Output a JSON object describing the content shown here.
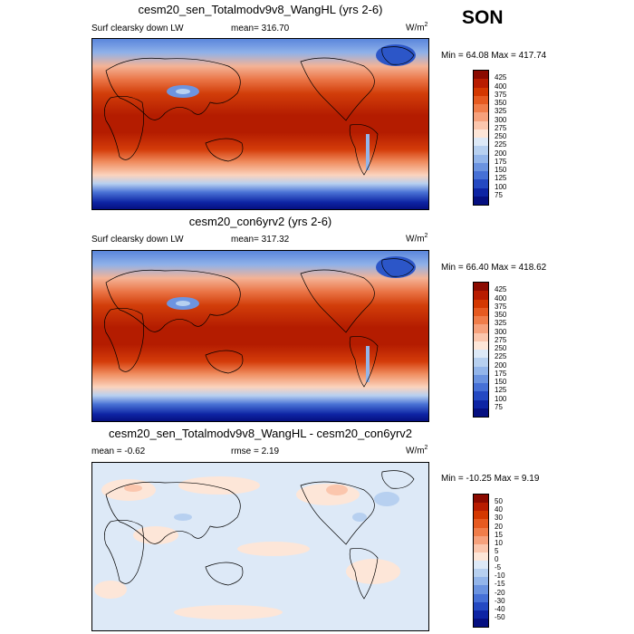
{
  "season": "SON",
  "panels": [
    {
      "title": "cesm20_sen_Totalmodv9v8_WangHL (yrs 2-6)",
      "left_label": "Surf clearsky down LW",
      "center_label": "mean= 316.70",
      "units": "W/m",
      "units_sup": "2",
      "minmax": "Min =  64.08 Max = 417.74",
      "levels": [
        "425",
        "400",
        "375",
        "350",
        "325",
        "300",
        "275",
        "250",
        "225",
        "200",
        "175",
        "150",
        "125",
        "100",
        "75"
      ],
      "colors": [
        "#8b0a00",
        "#b81c00",
        "#d43800",
        "#e65a20",
        "#f07d4a",
        "#f6a17c",
        "#fbc6ad",
        "#fde6d8",
        "#dde9f7",
        "#b7d0f0",
        "#93b5ea",
        "#6b93e0",
        "#4670d6",
        "#2449c2",
        "#0d24a4",
        "#050f80"
      ]
    },
    {
      "title": "cesm20_con6yrv2 (yrs 2-6)",
      "left_label": "Surf clearsky down LW",
      "center_label": "mean= 317.32",
      "units": "W/m",
      "units_sup": "2",
      "minmax": "Min =  66.40 Max = 418.62",
      "levels": [
        "425",
        "400",
        "375",
        "350",
        "325",
        "300",
        "275",
        "250",
        "225",
        "200",
        "175",
        "150",
        "125",
        "100",
        "75"
      ],
      "colors": [
        "#8b0a00",
        "#b81c00",
        "#d43800",
        "#e65a20",
        "#f07d4a",
        "#f6a17c",
        "#fbc6ad",
        "#fde6d8",
        "#dde9f7",
        "#b7d0f0",
        "#93b5ea",
        "#6b93e0",
        "#4670d6",
        "#2449c2",
        "#0d24a4",
        "#050f80"
      ]
    },
    {
      "title": "cesm20_sen_Totalmodv9v8_WangHL - cesm20_con6yrv2",
      "left_label": "mean =  -0.62",
      "center_label": "rmse =   2.19",
      "units": "W/m",
      "units_sup": "2",
      "minmax": "Min = -10.25 Max =   9.19",
      "levels": [
        "50",
        "40",
        "30",
        "20",
        "15",
        "10",
        "5",
        "0",
        "-5",
        "-10",
        "-15",
        "-20",
        "-30",
        "-40",
        "-50"
      ],
      "colors": [
        "#8b0a00",
        "#b81c00",
        "#d43800",
        "#e65a20",
        "#f07d4a",
        "#f6a17c",
        "#fbc6ad",
        "#fde6d8",
        "#dde9f7",
        "#b7d0f0",
        "#93b5ea",
        "#6b93e0",
        "#4670d6",
        "#2449c2",
        "#0d24a4",
        "#050f80"
      ]
    }
  ]
}
